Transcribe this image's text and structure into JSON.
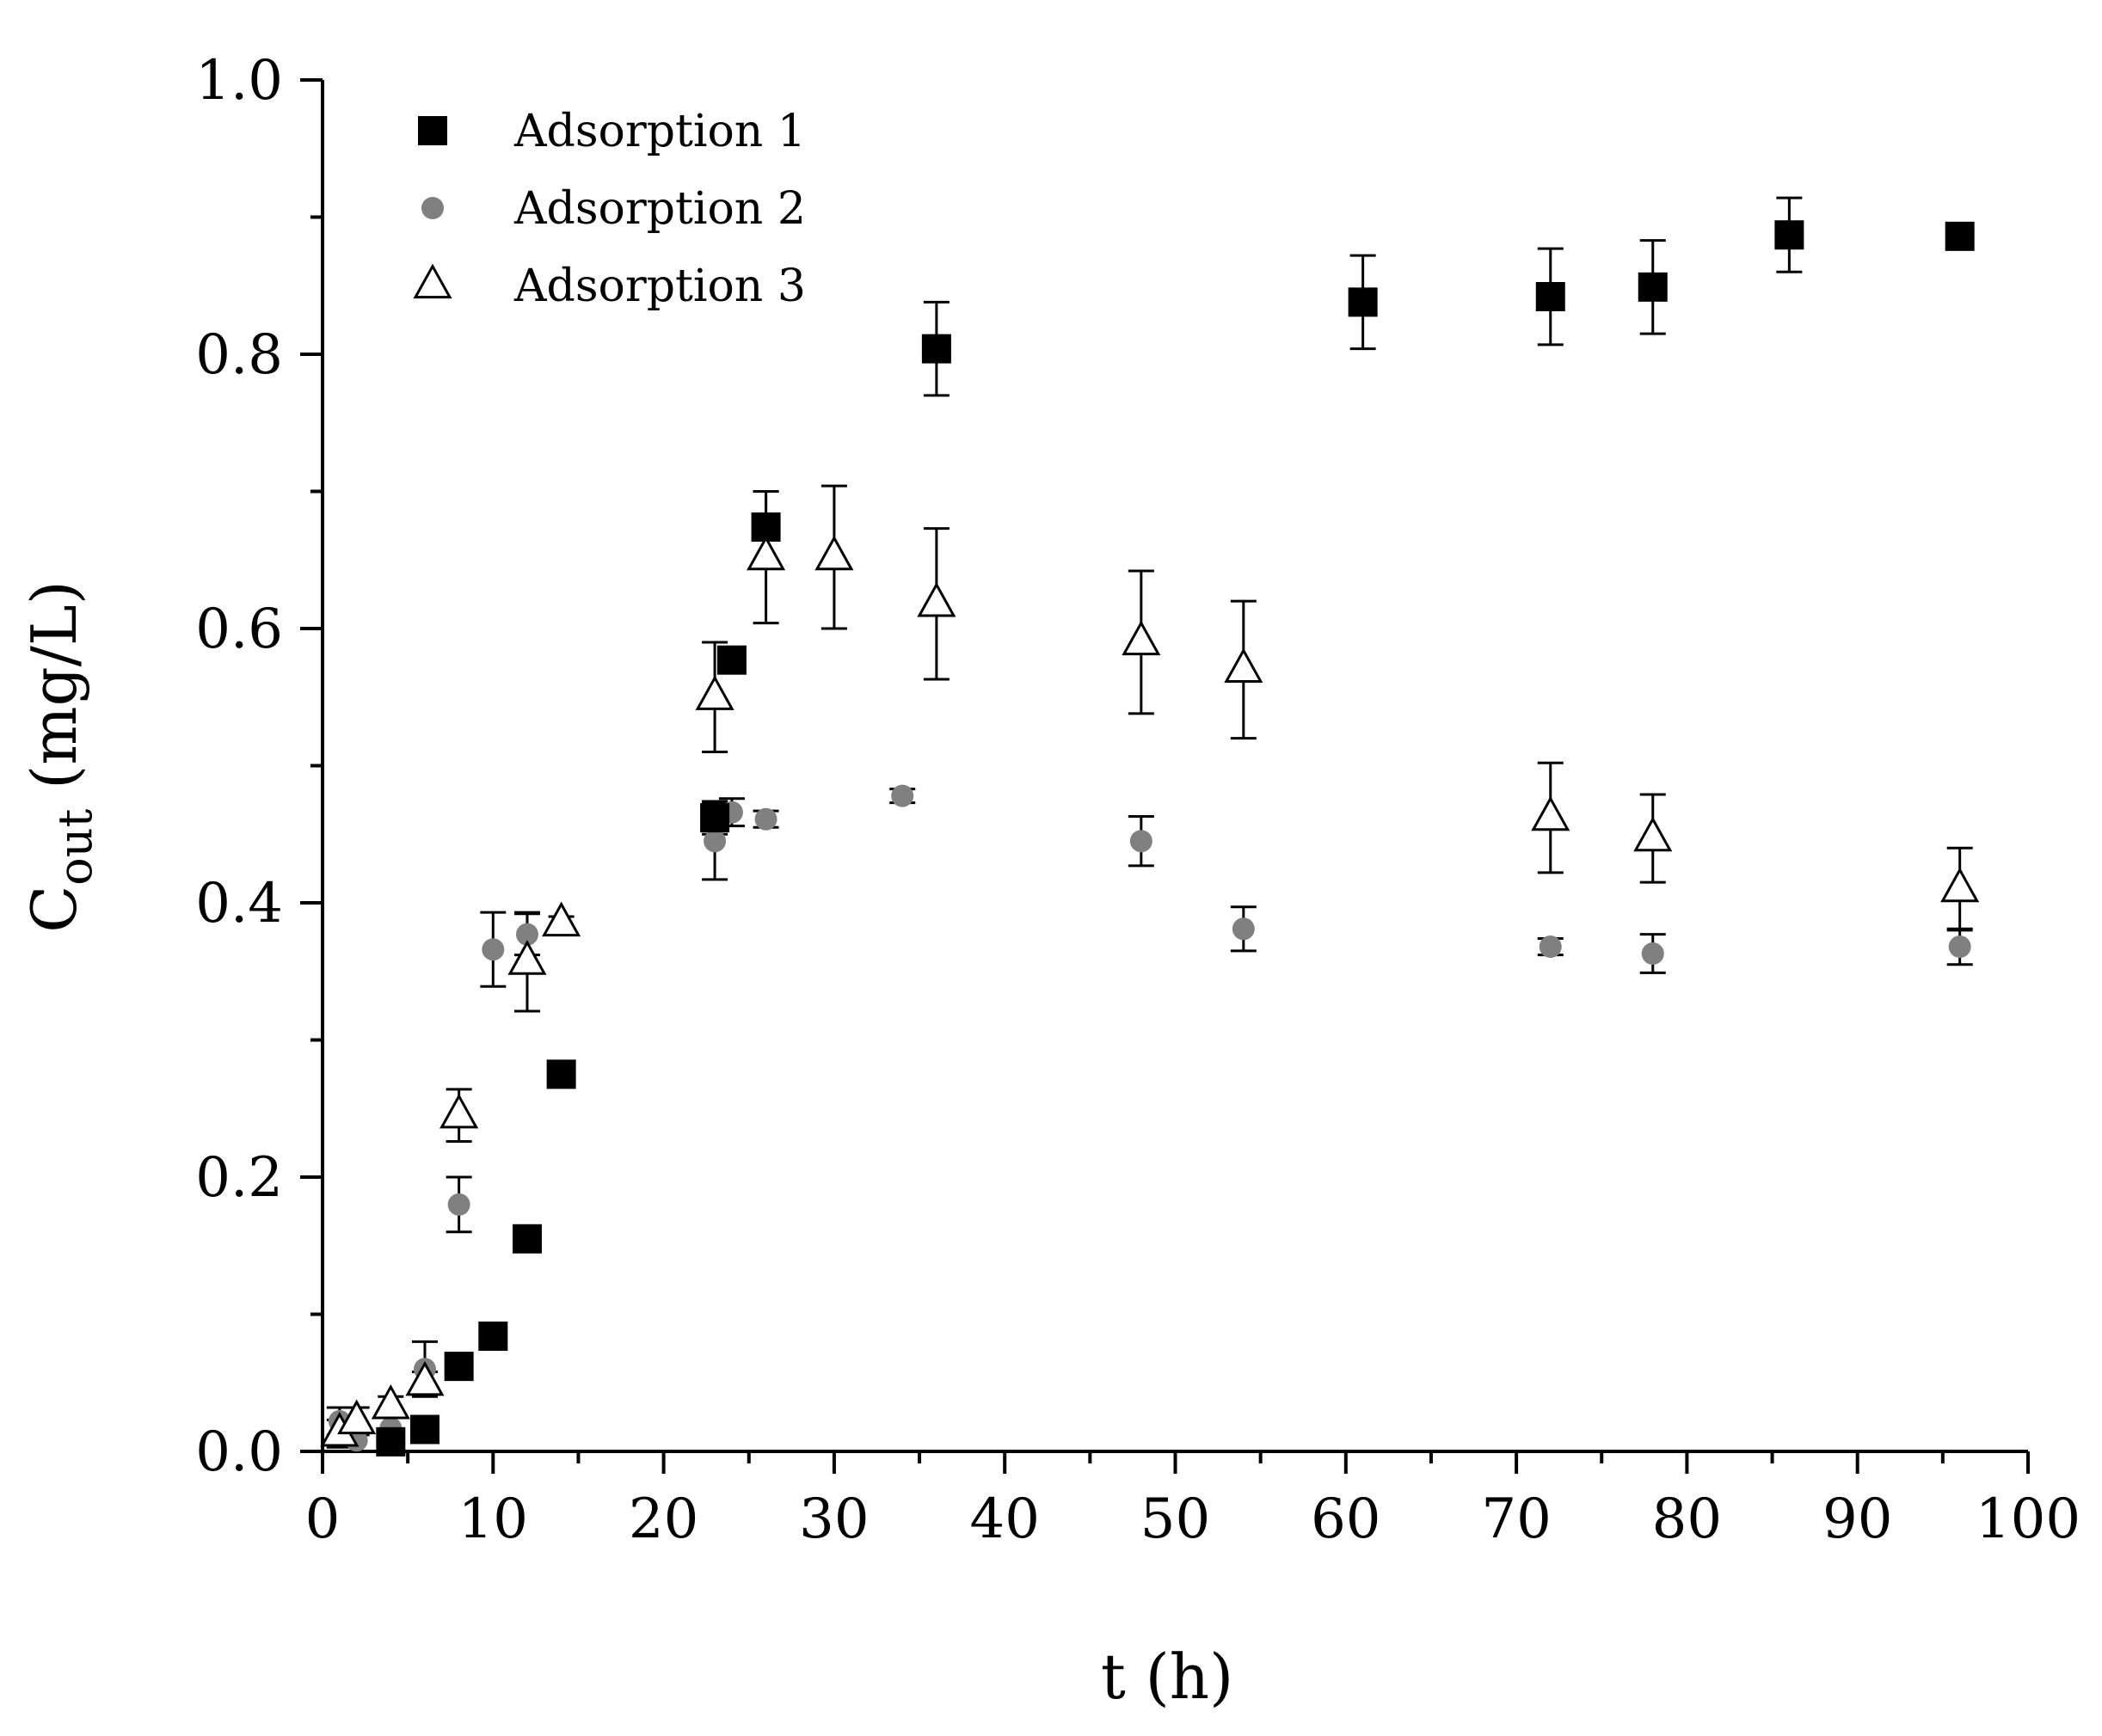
{
  "chart_data": {
    "type": "scatter",
    "title": "",
    "xlabel": "t (h)",
    "ylabel": {
      "main": "C",
      "subscript": "out",
      "units": " (mg/L)"
    },
    "xlim": [
      0,
      100
    ],
    "ylim": [
      0,
      1.0
    ],
    "x_ticks": [
      0,
      10,
      20,
      30,
      40,
      50,
      60,
      70,
      80,
      90,
      100
    ],
    "x_tick_labels": [
      "0",
      "10",
      "20",
      "30",
      "40",
      "50",
      "60",
      "70",
      "80",
      "90",
      "100"
    ],
    "y_ticks": [
      0.0,
      0.2,
      0.4,
      0.6,
      0.8,
      1.0
    ],
    "y_tick_labels": [
      "0.0",
      "0.2",
      "0.4",
      "0.6",
      "0.8",
      "1.0"
    ],
    "legend_position": "top-left",
    "series": [
      {
        "name": "Adsorption 1",
        "marker": "square",
        "color": "#000000",
        "points": [
          {
            "x": 4,
            "y": 0.007,
            "err": 0
          },
          {
            "x": 6,
            "y": 0.016,
            "err": 0
          },
          {
            "x": 8,
            "y": 0.062,
            "err": 0
          },
          {
            "x": 10,
            "y": 0.084,
            "err": 0
          },
          {
            "x": 12,
            "y": 0.155,
            "err": 0
          },
          {
            "x": 14,
            "y": 0.275,
            "err": 0
          },
          {
            "x": 23,
            "y": 0.462,
            "err": 0.012
          },
          {
            "x": 24,
            "y": 0.577,
            "err": 0
          },
          {
            "x": 26,
            "y": 0.674,
            "err": 0.026
          },
          {
            "x": 36,
            "y": 0.804,
            "err": 0.034
          },
          {
            "x": 61,
            "y": 0.838,
            "err": 0.034
          },
          {
            "x": 72,
            "y": 0.842,
            "err": 0.035
          },
          {
            "x": 78,
            "y": 0.849,
            "err": 0.034
          },
          {
            "x": 86,
            "y": 0.887,
            "err": 0.027
          },
          {
            "x": 96,
            "y": 0.886,
            "err": 0.008
          }
        ]
      },
      {
        "name": "Adsorption 2",
        "marker": "circle",
        "color": "#808080",
        "points": [
          {
            "x": 1,
            "y": 0.022,
            "err": 0.01
          },
          {
            "x": 2,
            "y": 0.008,
            "err": 0
          },
          {
            "x": 4,
            "y": 0.017,
            "err": 0
          },
          {
            "x": 6,
            "y": 0.06,
            "err": 0.02
          },
          {
            "x": 8,
            "y": 0.18,
            "err": 0.02
          },
          {
            "x": 10,
            "y": 0.366,
            "err": 0.027
          },
          {
            "x": 12,
            "y": 0.377,
            "err": 0.015
          },
          {
            "x": 23,
            "y": 0.445,
            "err": 0.028
          },
          {
            "x": 24,
            "y": 0.466,
            "err": 0.01
          },
          {
            "x": 26,
            "y": 0.461,
            "err": 0.006
          },
          {
            "x": 34,
            "y": 0.478,
            "err": 0.005
          },
          {
            "x": 48,
            "y": 0.445,
            "err": 0.018
          },
          {
            "x": 54,
            "y": 0.381,
            "err": 0.016
          },
          {
            "x": 72,
            "y": 0.368,
            "err": 0.006
          },
          {
            "x": 78,
            "y": 0.363,
            "err": 0.014
          },
          {
            "x": 96,
            "y": 0.368,
            "err": 0.013
          }
        ]
      },
      {
        "name": "Adsorption 3",
        "marker": "triangle",
        "color": "#000000",
        "points": [
          {
            "x": 1,
            "y": 0.013,
            "err": 0.01
          },
          {
            "x": 2,
            "y": 0.022,
            "err": 0.01
          },
          {
            "x": 4,
            "y": 0.033,
            "err": 0.007
          },
          {
            "x": 6,
            "y": 0.05,
            "err": 0.008
          },
          {
            "x": 8,
            "y": 0.245,
            "err": 0.019
          },
          {
            "x": 12,
            "y": 0.357,
            "err": 0.036
          },
          {
            "x": 14,
            "y": 0.385,
            "err": 0.005
          },
          {
            "x": 23,
            "y": 0.55,
            "err": 0.04
          },
          {
            "x": 26,
            "y": 0.652,
            "err": 0.048
          },
          {
            "x": 30,
            "y": 0.652,
            "err": 0.052
          },
          {
            "x": 36,
            "y": 0.618,
            "err": 0.055
          },
          {
            "x": 48,
            "y": 0.59,
            "err": 0.052
          },
          {
            "x": 54,
            "y": 0.57,
            "err": 0.05
          },
          {
            "x": 72,
            "y": 0.462,
            "err": 0.04
          },
          {
            "x": 78,
            "y": 0.447,
            "err": 0.032
          },
          {
            "x": 96,
            "y": 0.41,
            "err": 0.03
          }
        ]
      }
    ]
  }
}
